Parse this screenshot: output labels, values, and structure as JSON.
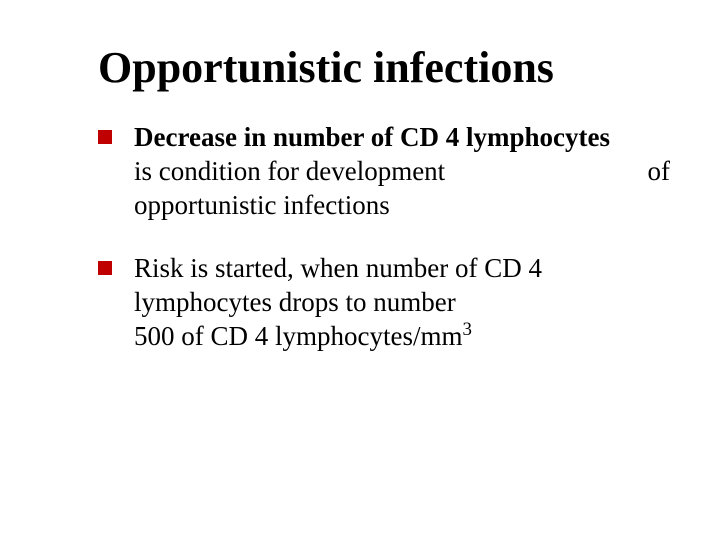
{
  "slide": {
    "title": "Opportunistic infections",
    "background_color": "#ffffff",
    "title_color": "#000000",
    "title_fontsize": 44,
    "body_fontsize": 27,
    "bullet_color": "#c00000",
    "bullet_size": 14,
    "bullets": [
      {
        "bold_part": "Decrease in number of CD 4 lymphocytes",
        "line2_left": "is condition for development",
        "line2_right": "of",
        "line3": "opportunistic infections"
      },
      {
        "line1": "Risk is started, when number of CD 4",
        "line2": "lymphocytes drops to number",
        "line3_pre": "500 of CD 4 lymphocytes/mm",
        "line3_sup": "3"
      }
    ]
  }
}
